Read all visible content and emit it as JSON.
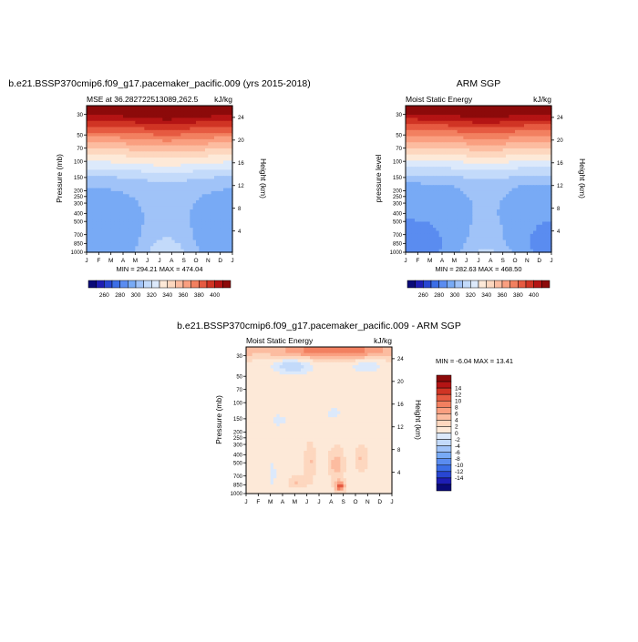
{
  "chart_data": [
    {
      "type": "heatmap",
      "title": "b.e21.BSSP370cmip6.f09_g17.pacemaker_pacific.009 (yrs 2015-2018)",
      "left_label": "MSE at 36.282722513089,262.5",
      "right_label": "kJ/kg",
      "ylabel": "Pressure (mb)",
      "ylabel_right": "Height (km)",
      "x_ticks": [
        "J",
        "F",
        "M",
        "A",
        "M",
        "J",
        "J",
        "A",
        "S",
        "O",
        "N",
        "D",
        "J"
      ],
      "y_ticks": [
        "30",
        "50",
        "70",
        "100",
        "150",
        "200",
        "250",
        "300",
        "400",
        "500",
        "700",
        "850",
        "1000"
      ],
      "height_ticks": [
        "24",
        "20",
        "16",
        "12",
        "8",
        "4"
      ],
      "min_max": "MIN = 294.21 MAX = 474.04",
      "colorbar_labels": [
        "260",
        "280",
        "300",
        "320",
        "340",
        "360",
        "380",
        "400"
      ],
      "colorbar_levels": [
        250,
        260,
        270,
        280,
        290,
        300,
        310,
        320,
        330,
        340,
        350,
        360,
        370,
        380,
        390,
        400,
        410
      ],
      "z_range": [
        294.21,
        474.04
      ],
      "grid": false
    },
    {
      "type": "heatmap",
      "title": "ARM SGP",
      "left_label": "Moist Static Energy",
      "right_label": "kJ/kg",
      "ylabel": "pressure level",
      "ylabel_right": "Height (km)",
      "x_ticks": [
        "J",
        "F",
        "M",
        "A",
        "M",
        "J",
        "J",
        "A",
        "S",
        "O",
        "N",
        "D",
        "J"
      ],
      "y_ticks": [
        "30",
        "50",
        "70",
        "100",
        "150",
        "200",
        "250",
        "300",
        "400",
        "500",
        "700",
        "850",
        "1000"
      ],
      "height_ticks": [
        "24",
        "20",
        "16",
        "12",
        "8",
        "4"
      ],
      "min_max": "MIN = 282.63 MAX = 468.50",
      "colorbar_labels": [
        "260",
        "280",
        "300",
        "320",
        "340",
        "360",
        "380",
        "400"
      ],
      "colorbar_levels": [
        250,
        260,
        270,
        280,
        290,
        300,
        310,
        320,
        330,
        340,
        350,
        360,
        370,
        380,
        390,
        400,
        410
      ],
      "z_range": [
        282.63,
        468.5
      ],
      "grid": false
    },
    {
      "type": "heatmap",
      "title": "b.e21.BSSP370cmip6.f09_g17.pacemaker_pacific.009 - ARM SGP",
      "left_label": "Moist Static Energy",
      "right_label": "kJ/kg",
      "ylabel": "Pressure (mb)",
      "ylabel_right": "Height (km)",
      "x_ticks": [
        "J",
        "F",
        "M",
        "A",
        "M",
        "J",
        "J",
        "A",
        "S",
        "O",
        "N",
        "D",
        "J"
      ],
      "y_ticks": [
        "30",
        "50",
        "70",
        "100",
        "150",
        "200",
        "250",
        "300",
        "400",
        "500",
        "700",
        "850",
        "1000"
      ],
      "height_ticks": [
        "24",
        "20",
        "16",
        "12",
        "8",
        "4"
      ],
      "min_max": "MIN =  -6.04 MAX =  13.41",
      "colorbar_labels": [
        "14",
        "12",
        "10",
        "8",
        "6",
        "4",
        "2",
        "0",
        "-2",
        "-4",
        "-6",
        "-8",
        "-10",
        "-12",
        "-14"
      ],
      "colorbar_levels": [
        -16,
        -14,
        -12,
        -10,
        -8,
        -6,
        -4,
        -2,
        0,
        2,
        4,
        6,
        8,
        10,
        12,
        14,
        16
      ],
      "z_range": [
        -6.04,
        13.41
      ],
      "grid": false
    }
  ],
  "colors": {
    "palette": [
      "#0a0a78",
      "#1e1eb4",
      "#2846d2",
      "#3c6ee6",
      "#5a8cf0",
      "#78aaf5",
      "#a0c3f8",
      "#c3dafa",
      "#dce9fb",
      "#fde9d8",
      "#fdd7bf",
      "#fcbca0",
      "#fa9f80",
      "#f28060",
      "#e65a41",
      "#d03424",
      "#b41414",
      "#8c0a0a"
    ],
    "contour_line": "#000000"
  }
}
